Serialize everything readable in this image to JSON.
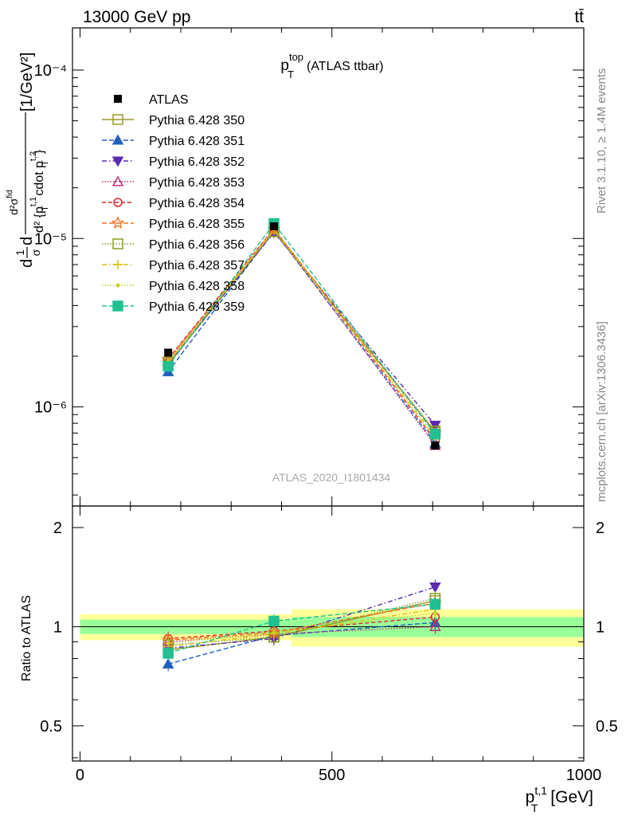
{
  "header": {
    "left": "13000 GeV pp",
    "right": "tt̄"
  },
  "main_title": {
    "symbol": "p",
    "sup": "top",
    "sub": "T",
    "suffix": "(ATLAS ttbar)"
  },
  "watermark": "ATLAS_2020_I1801434",
  "side_labels": {
    "rivet": "Rivet 3.1.10, ≥ 1.4M events",
    "mcplots": "mcplots.cern.ch [arXiv:1306.3436]"
  },
  "ylabel_main": {
    "part1": "d",
    "frac_top": "1",
    "frac_bottom": "σ",
    "part2": "d",
    "frac2_top": "d²σ",
    "frac2_top_sup": "fid",
    "frac2_bottom": "d² {p",
    "frac2_bottom_sub": "T",
    "frac2_bottom_sup": "t,1",
    "frac2_bottom_mid": " cdot p",
    "frac2_bottom_sub2": "T",
    "frac2_bottom_sup2": "t,2",
    "frac2_bottom_end": "}",
    "units": " [1/GeV²]"
  },
  "ylabel_ratio": "Ratio to ATLAS",
  "xlabel": {
    "symbol": "p",
    "sup": "t,1",
    "sub": "T",
    "units": " [GeV]"
  },
  "main_ticks": [
    "10⁻⁴",
    "10⁻⁵",
    "10⁻⁶"
  ],
  "ratio_ticks": [
    "2",
    "1",
    "0.5"
  ],
  "x_ticks": [
    "0",
    "500",
    "1000"
  ],
  "chart_data": {
    "type": "line",
    "x_log": false,
    "y_log": true,
    "xlim": [
      -15,
      1000
    ],
    "ylim": [
      2.58e-07,
      0.000178
    ],
    "ratio_ylim": [
      0.391,
      2.325
    ],
    "x": [
      175,
      385,
      705
    ],
    "x_bins": [
      [
        0,
        350
      ],
      [
        350,
        420
      ],
      [
        420,
        1000
      ]
    ],
    "reference": {
      "name": "ATLAS",
      "values": [
        2.1e-06,
        1.18e-05,
        5.9e-07
      ],
      "ratio_band_inner": [
        [
          0.95,
          1.05
        ],
        [
          0.95,
          1.05
        ],
        [
          0.93,
          1.07
        ]
      ],
      "ratio_band_outer": [
        [
          0.91,
          1.09
        ],
        [
          0.91,
          1.09
        ],
        [
          0.87,
          1.13
        ]
      ]
    },
    "series": [
      {
        "name": "Pythia 6.428 350",
        "color": "#9a9a2a",
        "dash": "",
        "marker": "square-open",
        "ratios": [
          0.85,
          0.93,
          1.2
        ]
      },
      {
        "name": "Pythia 6.428 351",
        "color": "#1f5fbf",
        "dash": "6,3",
        "marker": "triangle-up",
        "ratios": [
          0.77,
          0.94,
          1.03
        ]
      },
      {
        "name": "Pythia 6.428 352",
        "color": "#5a2ab0",
        "dash": "6,3,1.5,3",
        "marker": "triangle-down",
        "ratios": [
          0.86,
          0.92,
          1.32
        ]
      },
      {
        "name": "Pythia 6.428 353",
        "color": "#c0307a",
        "dash": "1.5,2",
        "marker": "triangle-up-open",
        "ratios": [
          0.9,
          0.95,
          1.0
        ]
      },
      {
        "name": "Pythia 6.428 354",
        "color": "#e0262c",
        "dash": "5,3",
        "marker": "circle-open",
        "ratios": [
          0.92,
          0.97,
          1.07
        ]
      },
      {
        "name": "Pythia 6.428 355",
        "color": "#f07020",
        "dash": "6,3",
        "marker": "star-open",
        "ratios": [
          0.91,
          0.96,
          1.18
        ]
      },
      {
        "name": "Pythia 6.428 356",
        "color": "#8aa020",
        "dash": "1.5,2",
        "marker": "square-open",
        "ratios": [
          0.88,
          0.93,
          1.22
        ]
      },
      {
        "name": "Pythia 6.428 357",
        "color": "#d8c010",
        "dash": "6,3,1.5,3",
        "marker": "dot-cross",
        "ratios": [
          0.87,
          0.95,
          1.13
        ]
      },
      {
        "name": "Pythia 6.428 358",
        "color": "#c8d020",
        "dash": "1.5,2",
        "marker": "dot",
        "ratios": [
          0.89,
          0.96,
          1.1
        ]
      },
      {
        "name": "Pythia 6.428 359",
        "color": "#20c090",
        "dash": "6,3",
        "marker": "square-filled",
        "ratios": [
          0.83,
          1.04,
          1.17
        ]
      }
    ]
  }
}
